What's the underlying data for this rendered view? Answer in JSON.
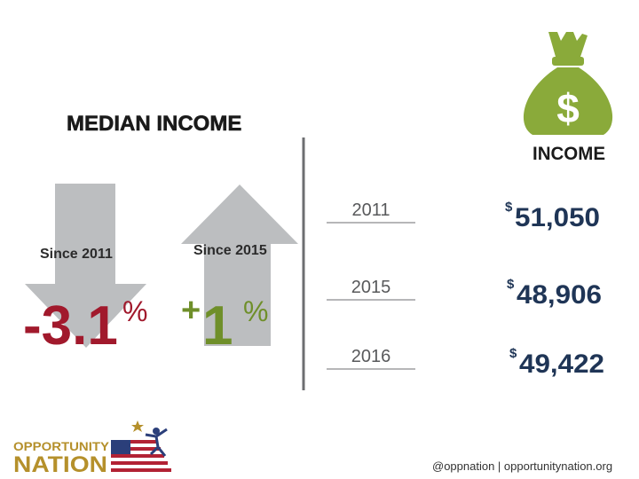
{
  "title": "MEDIAN INCOME",
  "changes": [
    {
      "label": "Since 2011",
      "value": "-3.1",
      "unit": "%"
    },
    {
      "label": "Since 2015",
      "sign": "+",
      "value": "1",
      "unit": "%"
    }
  ],
  "income_table": [
    {
      "year": "2011",
      "currency": "$",
      "amount": "51,050"
    },
    {
      "year": "2015",
      "currency": "$",
      "amount": "48,906"
    },
    {
      "year": "2016",
      "currency": "$",
      "amount": "49,422"
    }
  ],
  "icon": {
    "symbol": "$",
    "label": "INCOME"
  },
  "logo": {
    "line1": "OPPORTUNITY",
    "line2": "NATION"
  },
  "footer": "@oppnation |  opportunitynation.org"
}
